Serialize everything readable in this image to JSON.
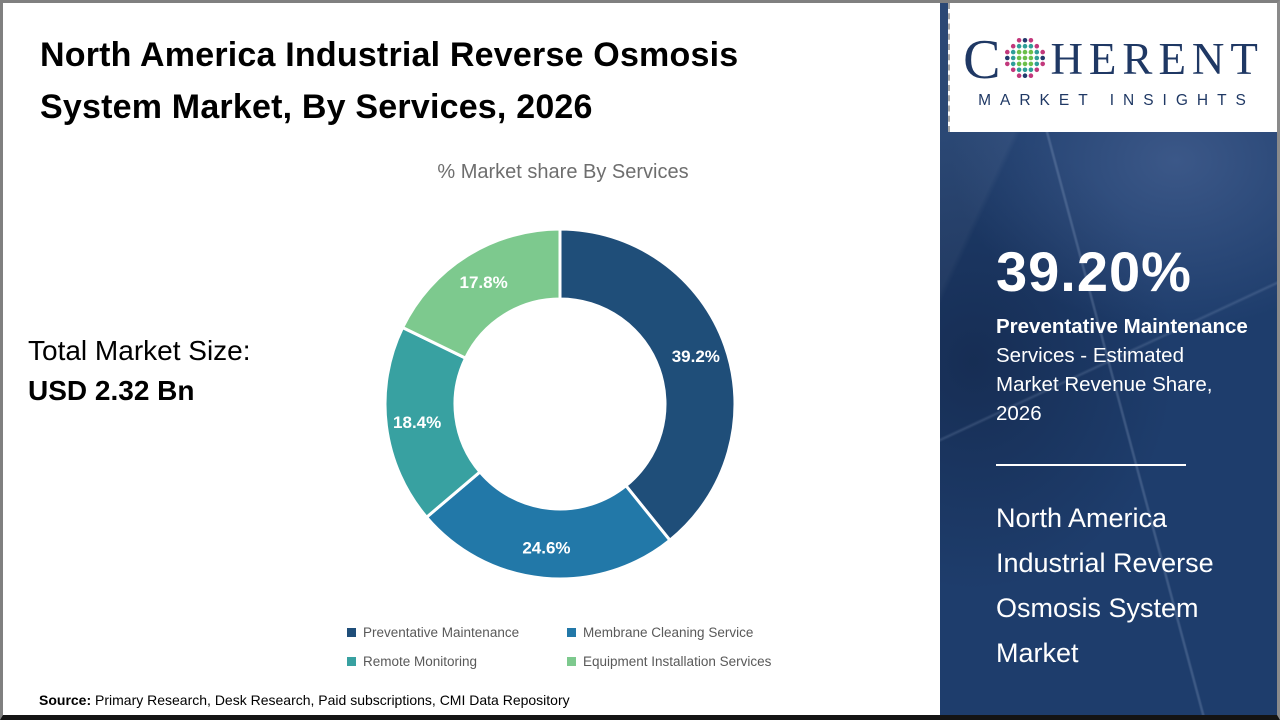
{
  "header": {
    "title_line1": "North America Industrial Reverse Osmosis",
    "title_line2": "System Market, By Services, 2026"
  },
  "logo": {
    "brand_c": "C",
    "brand_rest": "HERENT",
    "tagline": "MARKET INSIGHTS",
    "globe_icon": "dotted-globe-icon",
    "brand_color": "#1f3864",
    "globe_dot_colors": [
      "#6cbf4a",
      "#2f9e98",
      "#c2387c",
      "#233a6d"
    ]
  },
  "left_panel": {
    "market_size_label": "Total Market Size:",
    "market_size_value": "USD 2.32 Bn"
  },
  "chart_data": {
    "type": "pie",
    "subtype": "donut",
    "title": "% Market share By Services",
    "categories": [
      "Preventative Maintenance",
      "Membrane Cleaning Service",
      "Remote Monitoring",
      "Equipment Installation Services"
    ],
    "values": [
      39.2,
      24.6,
      18.4,
      17.8
    ],
    "labels": [
      "39.2%",
      "24.6%",
      "18.4%",
      "17.8%"
    ],
    "colors": [
      "#1f4e79",
      "#2278a8",
      "#38a1a1",
      "#7dc98e"
    ],
    "start_angle_deg": 0,
    "direction": "clockwise",
    "donut_hole_ratio": 0.6,
    "legend_position": "bottom",
    "label_color": "#ffffff"
  },
  "sidebar": {
    "bg_color": "#1e3d6c",
    "stat_value": "39.20%",
    "stat_bold": "Preventative Maintenance",
    "stat_rest": " Services - Estimated Market Revenue Share, 2026",
    "market_name": "North America Industrial Reverse Osmosis System Market"
  },
  "footer": {
    "source_label": "Source:",
    "source_text": " Primary Research, Desk Research, Paid subscriptions, CMI Data Repository"
  }
}
